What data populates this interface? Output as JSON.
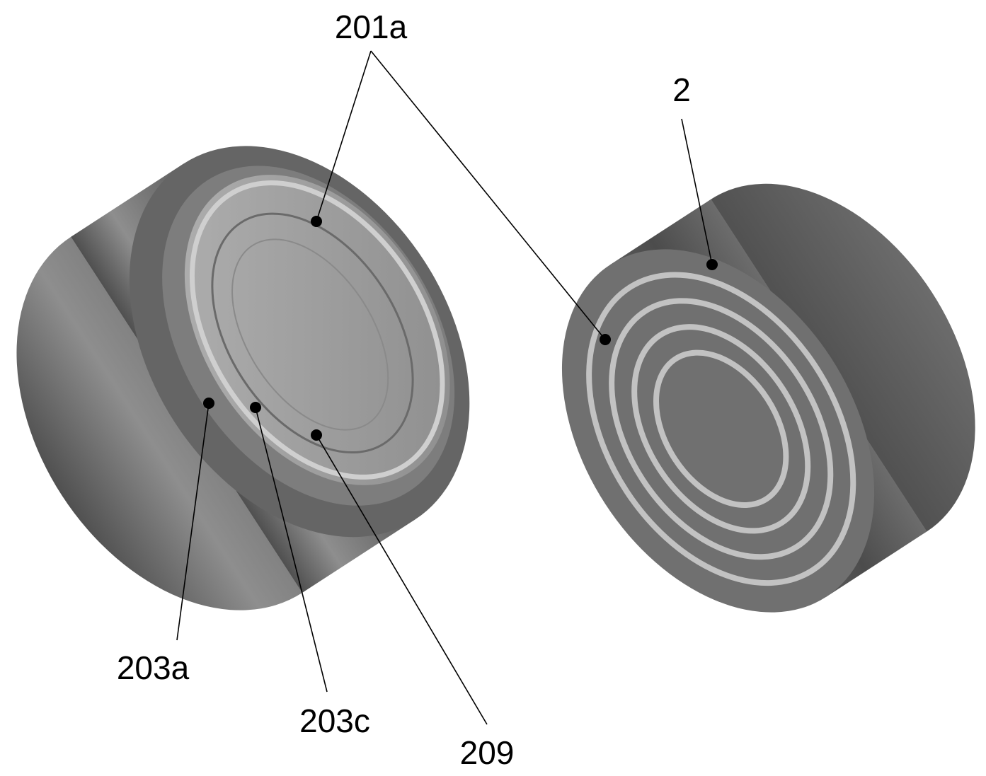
{
  "labels": {
    "l201a": "201a",
    "l2": "2",
    "l203a": "203a",
    "l203c": "203c",
    "l209": "209"
  },
  "colors": {
    "body_dark": "#4a4a4a",
    "body_mid": "#6e6e6e",
    "body_light": "#8c8c8c",
    "inner_light": "#a6a6a6",
    "spiral": "#c0c0c0"
  }
}
